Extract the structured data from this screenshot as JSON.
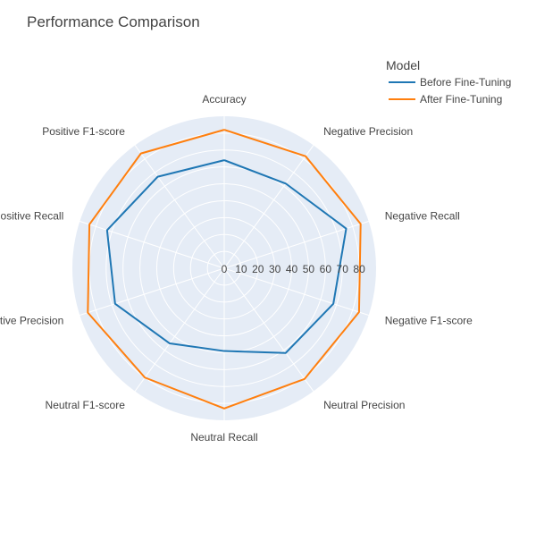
{
  "chart_data": {
    "type": "radar",
    "title": "Performance Comparison",
    "categories": [
      "Accuracy",
      "Negative Precision",
      "Negative Recall",
      "Negative F1-score",
      "Neutral Precision",
      "Neutral Recall",
      "Neutral F1-score",
      "Positive Precision",
      "Positive Recall",
      "Positive F1-score"
    ],
    "radial_ticks": [
      0,
      10,
      20,
      30,
      40,
      50,
      60,
      70,
      80
    ],
    "radial_range": [
      0,
      90
    ],
    "grid": true,
    "legend": {
      "title": "Model",
      "placement": "top-right"
    },
    "series": [
      {
        "name": "Before Fine-Tuning",
        "color": "#1f77b4",
        "values": [
          64,
          62,
          76,
          68,
          62,
          49,
          55,
          68,
          73,
          67
        ]
      },
      {
        "name": "After Fine-Tuning",
        "color": "#ff7f0e",
        "values": [
          82,
          82,
          85,
          84,
          81,
          83,
          80,
          85,
          84,
          84
        ]
      }
    ]
  },
  "colors": {
    "polar_background": "#e5ecf6",
    "grid": "#ffffff",
    "text": "#444444",
    "title": "#444444"
  }
}
